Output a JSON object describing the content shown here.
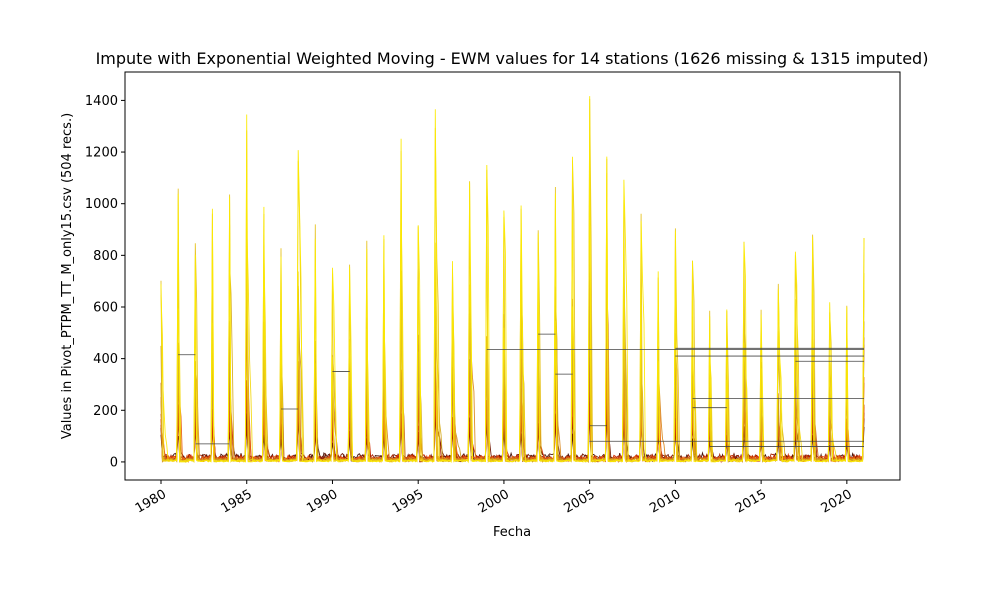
{
  "chart_data": {
    "type": "line",
    "title": "Impute with Exponential Weighted Moving - EWM values for 14 stations (1626 missing & 1315 imputed)",
    "xlabel": "Fecha",
    "ylabel": "Values in Pivot_PTPM_TT_M_only15.csv (504 recs.)",
    "xlim": [
      1977.9,
      2023.1
    ],
    "ylim": [
      -70,
      1510
    ],
    "x_ticks": [
      1980,
      1985,
      1990,
      1995,
      2000,
      2005,
      2010,
      2015,
      2020
    ],
    "x_tick_labels": [
      "1980",
      "1985",
      "1990",
      "1995",
      "2000",
      "2005",
      "2010",
      "2015",
      "2020"
    ],
    "y_ticks": [
      0,
      200,
      400,
      600,
      800,
      1000,
      1200,
      1400
    ],
    "y_tick_labels": [
      "0",
      "200",
      "400",
      "600",
      "800",
      "1000",
      "1200",
      "1400"
    ],
    "grid": false,
    "legend": "none",
    "x_range": [
      1980,
      2021
    ],
    "station_count": 14,
    "colormap": [
      "#3d0a00",
      "#6e1500",
      "#a32000",
      "#cc2a00",
      "#e0400e",
      "#e85a10",
      "#ee7512",
      "#c8641a",
      "#d8871e",
      "#c99a22",
      "#d6ac20",
      "#e6c21c",
      "#f2d810",
      "#fcea00"
    ],
    "annual_peaks": [
      {
        "year": 1980,
        "value": 725
      },
      {
        "year": 1981,
        "value": 1105
      },
      {
        "year": 1982,
        "value": 865
      },
      {
        "year": 1983,
        "value": 990
      },
      {
        "year": 1984,
        "value": 1095
      },
      {
        "year": 1985,
        "value": 1350
      },
      {
        "year": 1986,
        "value": 1030
      },
      {
        "year": 1987,
        "value": 860
      },
      {
        "year": 1988,
        "value": 1210
      },
      {
        "year": 1989,
        "value": 935
      },
      {
        "year": 1990,
        "value": 790
      },
      {
        "year": 1991,
        "value": 820
      },
      {
        "year": 1992,
        "value": 885
      },
      {
        "year": 1993,
        "value": 915
      },
      {
        "year": 1994,
        "value": 1255
      },
      {
        "year": 1995,
        "value": 920
      },
      {
        "year": 1996,
        "value": 1400
      },
      {
        "year": 1997,
        "value": 810
      },
      {
        "year": 1998,
        "value": 1130
      },
      {
        "year": 1999,
        "value": 1170
      },
      {
        "year": 2000,
        "value": 1020
      },
      {
        "year": 2001,
        "value": 1000
      },
      {
        "year": 2002,
        "value": 905
      },
      {
        "year": 2003,
        "value": 1090
      },
      {
        "year": 2004,
        "value": 1195
      },
      {
        "year": 2005,
        "value": 1445
      },
      {
        "year": 2006,
        "value": 1275
      },
      {
        "year": 2007,
        "value": 1100
      },
      {
        "year": 2008,
        "value": 975
      },
      {
        "year": 2009,
        "value": 750
      },
      {
        "year": 2010,
        "value": 910
      },
      {
        "year": 2011,
        "value": 830
      },
      {
        "year": 2012,
        "value": 610
      },
      {
        "year": 2013,
        "value": 625
      },
      {
        "year": 2014,
        "value": 885
      },
      {
        "year": 2015,
        "value": 590
      },
      {
        "year": 2016,
        "value": 695
      },
      {
        "year": 2017,
        "value": 815
      },
      {
        "year": 2018,
        "value": 925
      },
      {
        "year": 2019,
        "value": 620
      },
      {
        "year": 2020,
        "value": 650
      },
      {
        "year": 2021,
        "value": 930
      }
    ],
    "constant_segments": [
      {
        "x": [
          1981.0,
          1982.0
        ],
        "y": 415
      },
      {
        "x": [
          1982.0,
          1984.0
        ],
        "y": 70
      },
      {
        "x": [
          1987.0,
          1988.0
        ],
        "y": 205
      },
      {
        "x": [
          1990.0,
          1991.0
        ],
        "y": 350
      },
      {
        "x": [
          1999.0,
          2021.0
        ],
        "y": 435
      },
      {
        "x": [
          2002.0,
          2003.0
        ],
        "y": 495
      },
      {
        "x": [
          2003.0,
          2004.0
        ],
        "y": 340
      },
      {
        "x": [
          2005.0,
          2021.0
        ],
        "y": 80
      },
      {
        "x": [
          2005.0,
          2006.0
        ],
        "y": 140
      },
      {
        "x": [
          2010.0,
          2021.0
        ],
        "y": 440
      },
      {
        "x": [
          2010.0,
          2021.0
        ],
        "y": 410
      },
      {
        "x": [
          2011.0,
          2021.0
        ],
        "y": 245
      },
      {
        "x": [
          2011.0,
          2013.0
        ],
        "y": 210
      },
      {
        "x": [
          2012.0,
          2021.0
        ],
        "y": 60
      },
      {
        "x": [
          2017.0,
          2021.0
        ],
        "y": 390
      }
    ]
  }
}
